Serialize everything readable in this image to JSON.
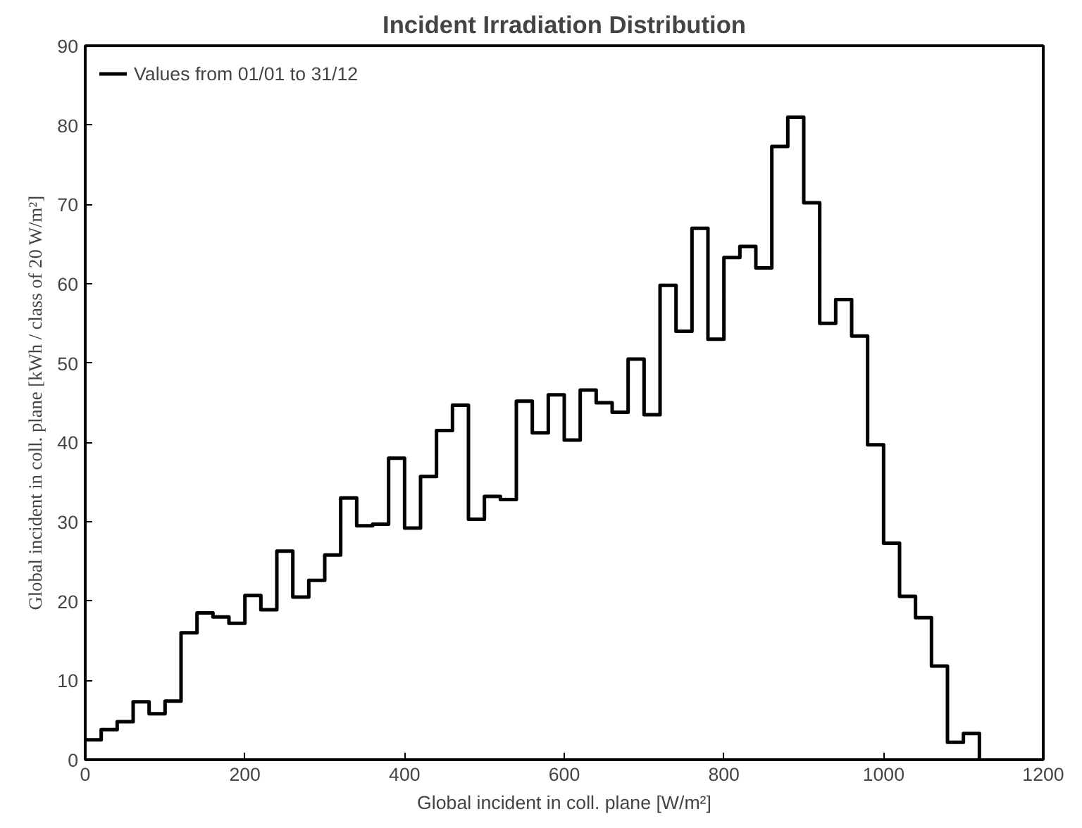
{
  "chart_data": {
    "type": "histogram",
    "title": "Incident Irradiation Distribution",
    "xlabel": "Global incident in coll. plane [W/m²]",
    "ylabel": "Global incident in coll. plane [kWh / class of 20 W/m²]",
    "bins": [
      0,
      20,
      40,
      60,
      80,
      100,
      120,
      140,
      160,
      180,
      200,
      220,
      240,
      260,
      280,
      300,
      320,
      340,
      360,
      380,
      400,
      420,
      440,
      460,
      480,
      500,
      520,
      540,
      560,
      580,
      600,
      620,
      640,
      660,
      680,
      700,
      720,
      740,
      760,
      780,
      800,
      820,
      840,
      860,
      880,
      900,
      920,
      940,
      960,
      980,
      1000,
      1020,
      1040,
      1060,
      1080,
      1100,
      1120
    ],
    "series": [
      {
        "name": "Values from 01/01 to 31/12",
        "color": "#000000",
        "values": [
          2.5,
          3.8,
          4.8,
          7.3,
          5.8,
          7.4,
          16,
          18.5,
          18,
          17.2,
          20.7,
          18.9,
          26.3,
          20.5,
          22.6,
          25.8,
          33,
          29.5,
          29.7,
          38,
          29.2,
          35.7,
          41.5,
          44.7,
          30.3,
          33.2,
          32.8,
          45.2,
          41.2,
          46,
          40.3,
          46.6,
          45,
          43.8,
          50.5,
          43.5,
          59.8,
          54,
          67,
          53,
          63.3,
          64.7,
          62,
          77.3,
          81,
          70.2,
          55,
          58,
          53.4,
          39.7,
          27.3,
          20.6,
          17.9,
          11.8,
          2.2,
          3.3
        ]
      }
    ],
    "xlim": [
      0,
      1200
    ],
    "ylim": [
      0,
      90
    ],
    "xticks": [
      0,
      200,
      400,
      600,
      800,
      1000,
      1200
    ],
    "yticks": [
      0,
      10,
      20,
      30,
      40,
      50,
      60,
      70,
      80,
      90
    ],
    "grid": false,
    "legend": "top left"
  }
}
